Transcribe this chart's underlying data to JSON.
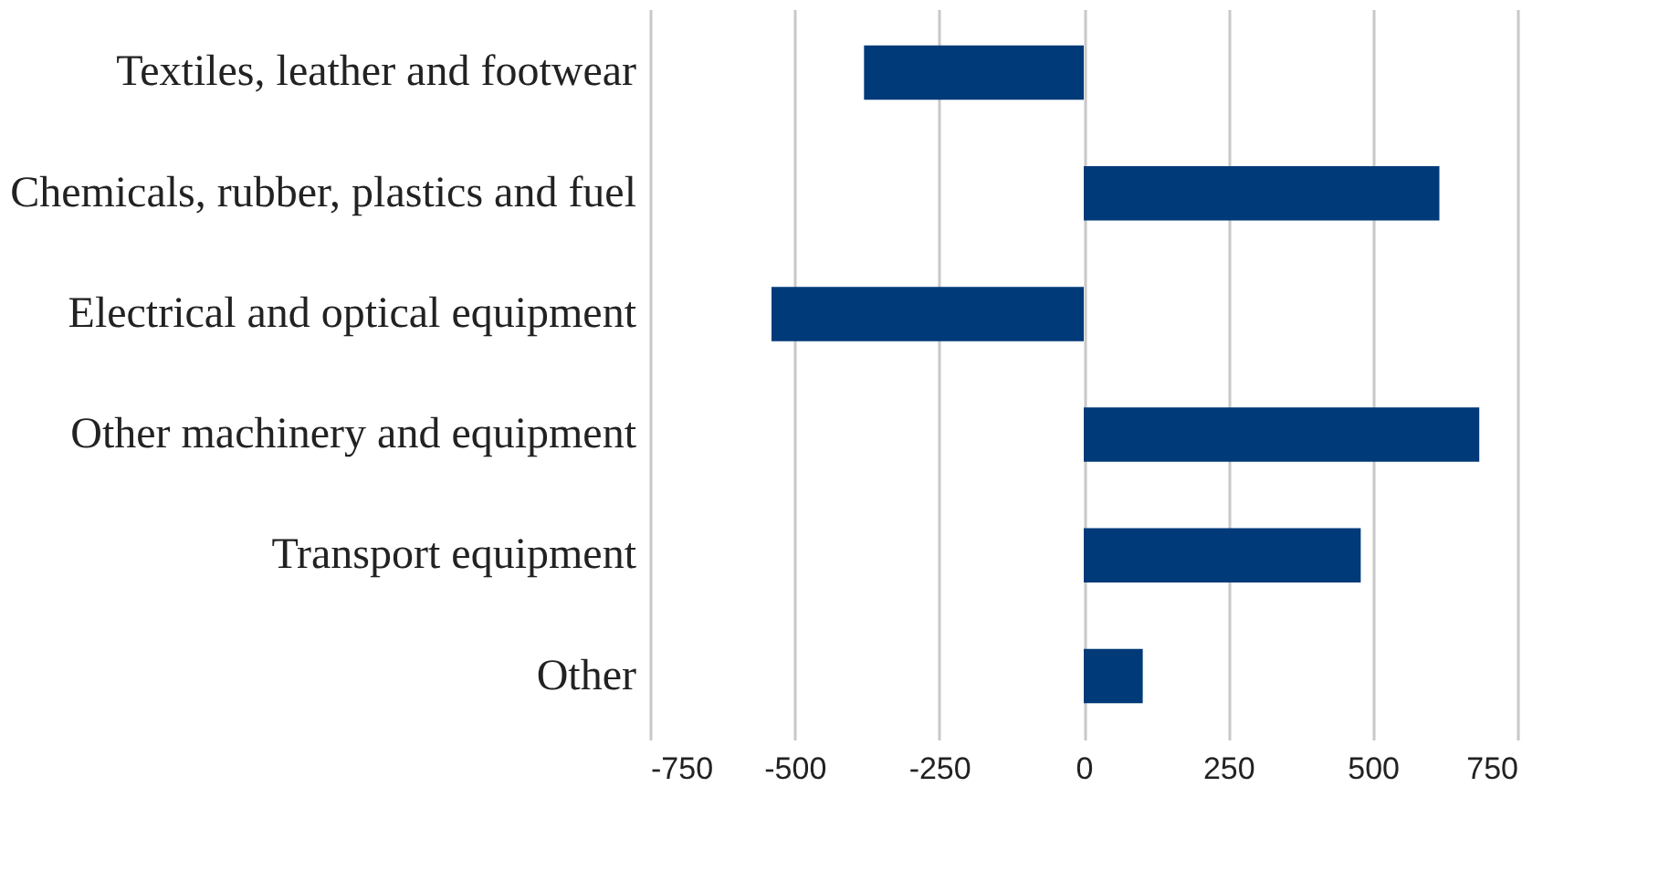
{
  "chart_data": {
    "type": "bar",
    "orientation": "horizontal",
    "categories": [
      "Textiles, leather and footwear",
      "Chemicals, rubber, plastics and fuel",
      "Electrical and optical equipment",
      "Other machinery and equipment",
      "Transport equipment",
      "Other"
    ],
    "values": [
      -380,
      615,
      -540,
      684,
      479,
      102
    ],
    "color": "#003a78",
    "xlim": [
      -750,
      750
    ],
    "xticks": [
      -750,
      -500,
      -250,
      0,
      250,
      500,
      750
    ],
    "grid": "x"
  }
}
